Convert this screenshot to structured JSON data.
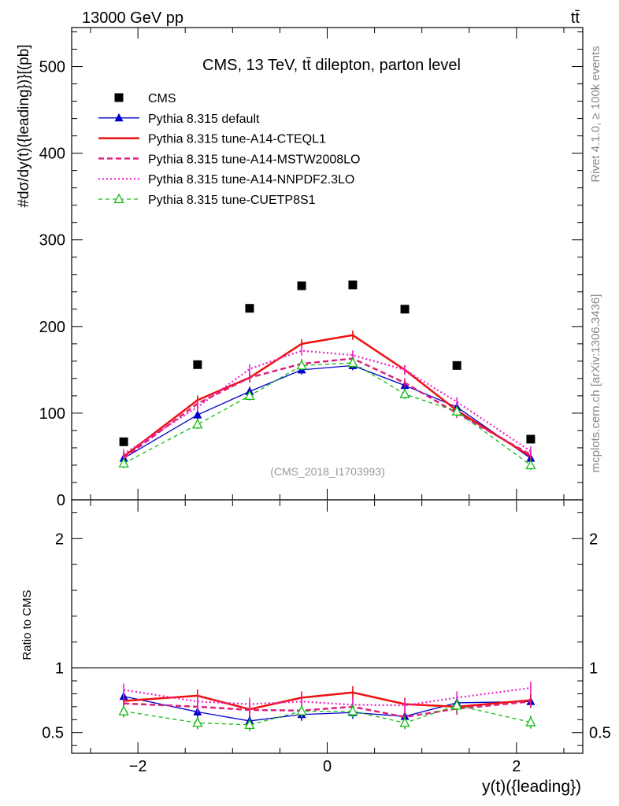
{
  "header": {
    "energy_label": "13000 GeV pp",
    "process_label": "tt̄"
  },
  "side_labels": {
    "rivet": "Rivet 4.1.0, ≥ 100k events",
    "source": "mcplots.cern.ch [arXiv:1306.3436]"
  },
  "chart_data": [
    {
      "type": "scatter",
      "title": "CMS, 13 TeV, tt̄ dilepton, parton level",
      "analysis_tag": "(CMS_2018_I1703993)",
      "ylabel": "#dσ/dy(t)({leading})}[(pb]",
      "xlabel": "y(t)({leading})",
      "xlim": [
        -2.7,
        2.7
      ],
      "ylim": [
        0,
        545
      ],
      "xticks": [
        -2,
        0,
        2
      ],
      "yticks": [
        0,
        100,
        200,
        300,
        400,
        500
      ],
      "x": [
        -2.15,
        -1.37,
        -0.82,
        -0.27,
        0.27,
        0.82,
        1.37,
        2.15
      ],
      "series": [
        {
          "name": "CMS",
          "style": "marker-square",
          "color": "#000000",
          "values": [
            67,
            156,
            221,
            247,
            248,
            220,
            155,
            70
          ]
        },
        {
          "name": "Pythia 8.315 default",
          "style": "line-triangle",
          "color": "#0000cc",
          "values": [
            48,
            98,
            125,
            150,
            155,
            132,
            107,
            48
          ]
        },
        {
          "name": "Pythia 8.315 tune-A14-CTEQL1",
          "style": "line-solid",
          "color": "#ee1111",
          "values": [
            50,
            115,
            141,
            180,
            190,
            150,
            103,
            50
          ]
        },
        {
          "name": "Pythia 8.315 tune-A14-MSTW2008LO",
          "style": "line-dashed",
          "color": "#e0207a",
          "values": [
            48,
            111,
            141,
            157,
            163,
            135,
            100,
            52
          ]
        },
        {
          "name": "Pythia 8.315 tune-A14-NNPDF2.3LO",
          "style": "line-dotted",
          "color": "#ee22cc",
          "values": [
            53,
            107,
            151,
            172,
            167,
            150,
            113,
            56
          ]
        },
        {
          "name": "Pythia 8.315 tune-CUETP8S1",
          "style": "line-dashed-open-triangle",
          "color": "#11bb11",
          "values": [
            42,
            87,
            120,
            155,
            158,
            122,
            102,
            40
          ]
        }
      ]
    },
    {
      "type": "line",
      "title": "",
      "ylabel": "Ratio to CMS",
      "xlabel": "y(t)({leading})",
      "xlim": [
        -2.7,
        2.7
      ],
      "ylim": [
        0.34,
        2.3
      ],
      "yticks": [
        0.5,
        1,
        2
      ],
      "x": [
        -2.15,
        -1.37,
        -0.82,
        -0.27,
        0.27,
        0.82,
        1.37,
        2.15
      ],
      "series": [
        {
          "name": "Pythia 8.315 default",
          "values": [
            0.78,
            0.66,
            0.59,
            0.64,
            0.655,
            0.625,
            0.73,
            0.74
          ]
        },
        {
          "name": "Pythia 8.315 tune-A14-CTEQL1",
          "values": [
            0.745,
            0.785,
            0.68,
            0.77,
            0.81,
            0.72,
            0.7,
            0.75
          ]
        },
        {
          "name": "Pythia 8.315 tune-A14-MSTW2008LO",
          "values": [
            0.725,
            0.7,
            0.675,
            0.67,
            0.7,
            0.62,
            0.685,
            0.74
          ]
        },
        {
          "name": "Pythia 8.315 tune-A14-NNPDF2.3LO",
          "values": [
            0.83,
            0.74,
            0.72,
            0.74,
            0.715,
            0.71,
            0.77,
            0.845
          ]
        },
        {
          "name": "Pythia 8.315 tune-CUETP8S1",
          "values": [
            0.665,
            0.575,
            0.56,
            0.665,
            0.665,
            0.575,
            0.71,
            0.58
          ]
        }
      ]
    }
  ]
}
